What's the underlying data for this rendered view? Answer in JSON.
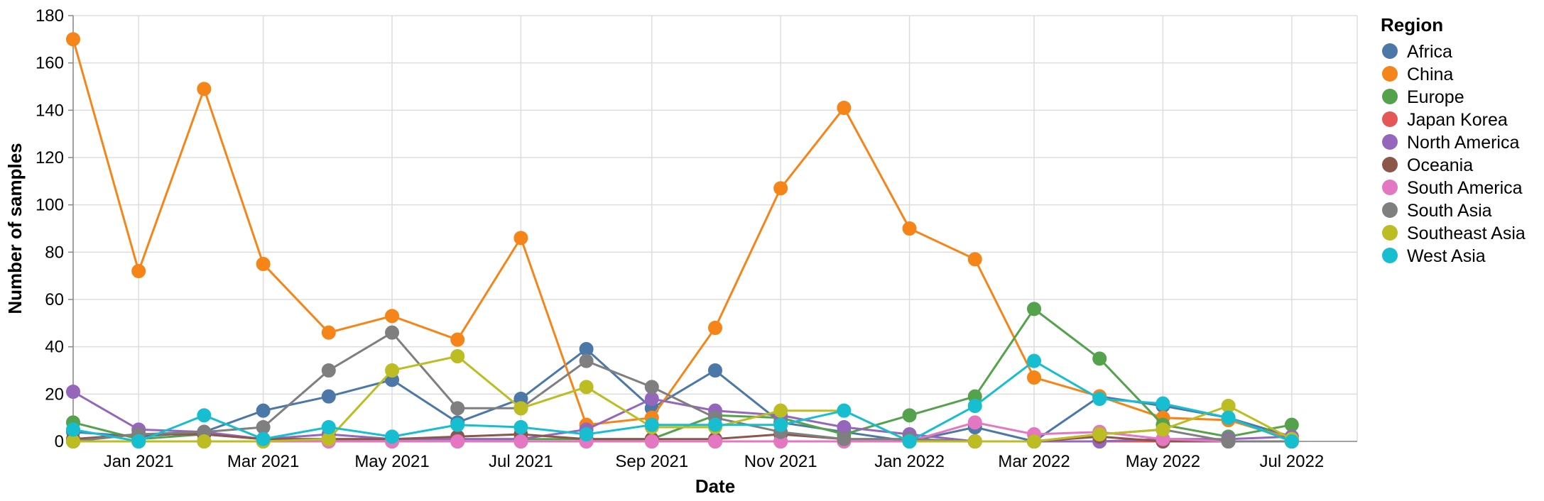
{
  "chart_data": {
    "type": "line",
    "title": "",
    "xlabel": "Date",
    "ylabel": "Number of samples",
    "ylim": [
      0,
      180
    ],
    "yticks": [
      "0",
      "20",
      "40",
      "60",
      "80",
      "100",
      "120",
      "140",
      "160",
      "180"
    ],
    "xticks": [
      "Jan 2021",
      "Mar 2021",
      "May 2021",
      "Jul 2021",
      "Sep 2021",
      "Nov 2021",
      "Jan 2022",
      "Mar 2022",
      "May 2022",
      "Jul 2022"
    ],
    "x": [
      "2020-12-01",
      "2021-01-01",
      "2021-02-01",
      "2021-03-01",
      "2021-04-01",
      "2021-05-01",
      "2021-06-01",
      "2021-07-01",
      "2021-08-01",
      "2021-09-01",
      "2021-10-01",
      "2021-11-01",
      "2021-12-01",
      "2022-01-01",
      "2022-02-01",
      "2022-03-01",
      "2022-04-01",
      "2022-05-01",
      "2022-06-01",
      "2022-07-01",
      "2022-08-01"
    ],
    "legend_title": "Region",
    "legend_position": "right",
    "grid": true,
    "series": [
      {
        "name": "Africa",
        "color": "#4c78a8",
        "values": [
          4,
          2,
          4,
          13,
          19,
          26,
          8,
          18,
          39,
          14,
          30,
          8,
          4,
          0,
          6,
          0,
          19,
          15,
          10,
          2,
          null
        ]
      },
      {
        "name": "China",
        "color": "#f58518",
        "values": [
          170,
          72,
          149,
          75,
          46,
          53,
          43,
          86,
          7,
          10,
          48,
          107,
          141,
          90,
          77,
          27,
          19,
          10,
          9,
          1,
          null
        ]
      },
      {
        "name": "Europe",
        "color": "#54a24b",
        "values": [
          8,
          1,
          3,
          1,
          1,
          1,
          1,
          1,
          1,
          1,
          11,
          10,
          3,
          11,
          19,
          56,
          35,
          7,
          2,
          7,
          null
        ]
      },
      {
        "name": "Japan Korea",
        "color": "#e45756",
        "values": [
          0,
          0,
          0,
          0,
          0,
          0,
          0,
          0,
          0,
          0,
          0,
          0,
          0,
          0,
          0,
          0,
          0,
          0,
          0,
          0,
          null
        ]
      },
      {
        "name": "North America",
        "color": "#9467bd",
        "values": [
          21,
          5,
          4,
          1,
          3,
          1,
          1,
          1,
          5,
          18,
          13,
          11,
          6,
          3,
          0,
          0,
          0,
          1,
          1,
          2,
          null
        ]
      },
      {
        "name": "Oceania",
        "color": "#8c564b",
        "values": [
          1,
          3,
          3,
          1,
          1,
          1,
          2,
          3,
          1,
          1,
          1,
          3,
          1,
          1,
          0,
          0,
          2,
          0,
          0,
          0,
          null
        ]
      },
      {
        "name": "South America",
        "color": "#e377c2",
        "values": [
          0,
          0,
          0,
          0,
          0,
          0,
          0,
          0,
          0,
          0,
          0,
          0,
          0,
          0,
          8,
          3,
          4,
          1,
          0,
          0,
          null
        ]
      },
      {
        "name": "South Asia",
        "color": "#7f7f7f",
        "values": [
          0,
          3,
          4,
          6,
          30,
          46,
          14,
          14,
          34,
          23,
          10,
          4,
          1,
          1,
          0,
          0,
          3,
          5,
          0,
          0,
          null
        ]
      },
      {
        "name": "Southeast Asia",
        "color": "#bcbd22",
        "values": [
          0,
          0,
          0,
          0,
          1,
          30,
          36,
          14,
          23,
          6,
          6,
          13,
          13,
          0,
          0,
          0,
          3,
          5,
          15,
          1,
          null
        ]
      },
      {
        "name": "West Asia",
        "color": "#17becf",
        "values": [
          5,
          0,
          11,
          1,
          6,
          2,
          7,
          6,
          3,
          7,
          7,
          7,
          13,
          0,
          15,
          34,
          18,
          16,
          10,
          0,
          null
        ]
      }
    ]
  }
}
